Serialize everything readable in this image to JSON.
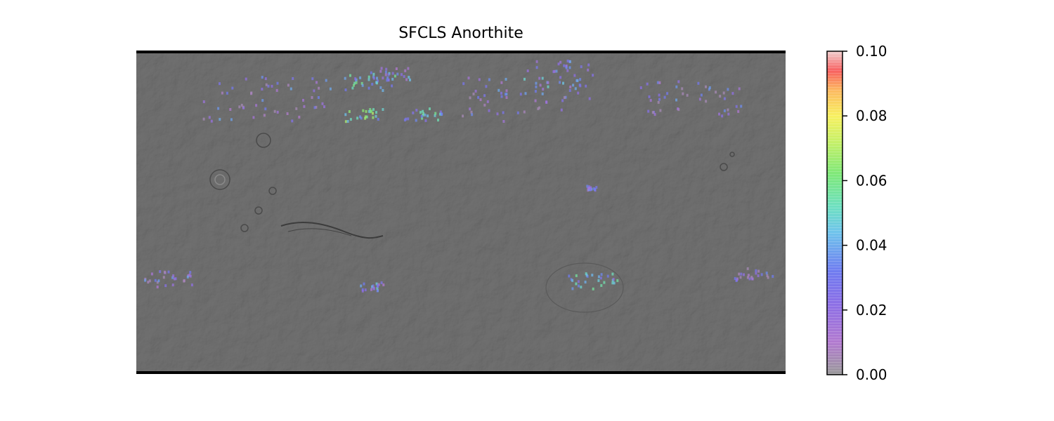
{
  "chart_data": {
    "type": "heatmap",
    "title": "SFCLS Anorthite",
    "xlabel": "",
    "ylabel": "",
    "colorbar": {
      "min": 0.0,
      "max": 0.1,
      "ticks": [
        "0.00",
        "0.02",
        "0.04",
        "0.06",
        "0.08",
        "0.10"
      ],
      "colormap": "nipy_spectral",
      "alpha": "semi-transparent over grey shaded-relief basemap"
    },
    "basemap": "grey shaded-relief global map",
    "hotspots": [
      {
        "region": "north-mid band",
        "lon": 0.36,
        "lat": 0.09,
        "value": 0.04,
        "spread": 0.04
      },
      {
        "region": "north-mid band",
        "lon": 0.39,
        "lat": 0.06,
        "value": 0.03,
        "spread": 0.03
      },
      {
        "region": "north cluster A",
        "lon": 0.35,
        "lat": 0.19,
        "value": 0.05,
        "spread": 0.03
      },
      {
        "region": "north cluster B",
        "lon": 0.44,
        "lat": 0.19,
        "value": 0.04,
        "spread": 0.03
      },
      {
        "region": "north row",
        "lon": 0.2,
        "lat": 0.14,
        "value": 0.02,
        "spread": 0.1
      },
      {
        "region": "north row",
        "lon": 0.6,
        "lat": 0.14,
        "value": 0.02,
        "spread": 0.1
      },
      {
        "region": "north row",
        "lon": 0.85,
        "lat": 0.14,
        "value": 0.02,
        "spread": 0.08
      },
      {
        "region": "north top",
        "lon": 0.65,
        "lat": 0.06,
        "value": 0.03,
        "spread": 0.06
      },
      {
        "region": "equatorial",
        "lon": 0.7,
        "lat": 0.42,
        "value": 0.03,
        "spread": 0.01
      },
      {
        "region": "south",
        "lon": 0.36,
        "lat": 0.73,
        "value": 0.03,
        "spread": 0.02
      },
      {
        "region": "south basin",
        "lon": 0.7,
        "lat": 0.71,
        "value": 0.04,
        "spread": 0.04
      },
      {
        "region": "south west",
        "lon": 0.05,
        "lat": 0.71,
        "value": 0.02,
        "spread": 0.04
      },
      {
        "region": "south east",
        "lon": 0.95,
        "lat": 0.69,
        "value": 0.02,
        "spread": 0.03
      }
    ]
  }
}
